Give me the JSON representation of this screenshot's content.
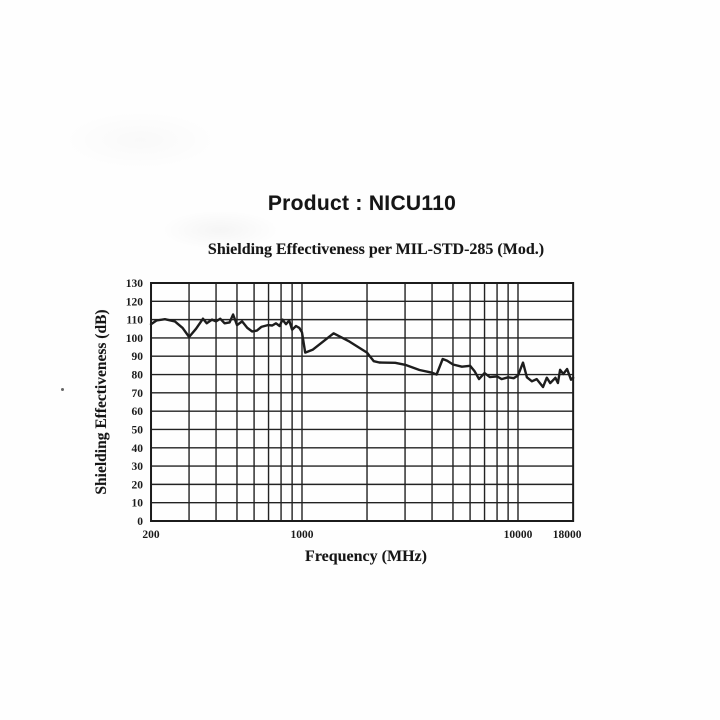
{
  "page": {
    "title": "Product : NICU110",
    "subtitle": "Shielding Effectiveness per MIL-STD-285 (Mod.)"
  },
  "chart_data": {
    "type": "line",
    "title": "Shielding Effectiveness per MIL-STD-285 (Mod.)",
    "xlabel": "Frequency (MHz)",
    "ylabel": "Shielding Effectiveness (dB)",
    "x_scale": "log",
    "xlim": [
      200,
      18000
    ],
    "ylim": [
      0,
      130
    ],
    "grid": true,
    "legend": "none",
    "line_color": "#1d1d1d",
    "y_ticks": [
      0,
      10,
      20,
      30,
      40,
      50,
      60,
      70,
      80,
      90,
      100,
      110,
      120,
      130
    ],
    "x_ticks": [
      {
        "label": "200",
        "value": 200
      },
      {
        "label": "1000",
        "value": 1000
      },
      {
        "label": "10000",
        "value": 10000
      },
      {
        "label": "18000",
        "value": 18000
      }
    ],
    "x_gridlines": [
      300,
      400,
      500,
      600,
      700,
      800,
      900,
      1000,
      2000,
      3000,
      4000,
      5000,
      6000,
      7000,
      8000,
      9000,
      10000
    ],
    "series": [
      {
        "name": "Shielding Effectiveness (dB) vs Frequency (MHz)",
        "points": [
          [
            200,
            107.5
          ],
          [
            212,
            109.5
          ],
          [
            232,
            110.2
          ],
          [
            258,
            109
          ],
          [
            280,
            105.5
          ],
          [
            300,
            100.5
          ],
          [
            323,
            105
          ],
          [
            348,
            110.5
          ],
          [
            362,
            108
          ],
          [
            383,
            110
          ],
          [
            400,
            109
          ],
          [
            418,
            110.5
          ],
          [
            438,
            108
          ],
          [
            462,
            108.5
          ],
          [
            480,
            112.8
          ],
          [
            500,
            107
          ],
          [
            528,
            109
          ],
          [
            558,
            105.5
          ],
          [
            588,
            103.5
          ],
          [
            618,
            104
          ],
          [
            648,
            106
          ],
          [
            695,
            107
          ],
          [
            728,
            106.8
          ],
          [
            758,
            108
          ],
          [
            788,
            106.5
          ],
          [
            812,
            110
          ],
          [
            843,
            107.5
          ],
          [
            872,
            109.5
          ],
          [
            900,
            104.5
          ],
          [
            938,
            106.5
          ],
          [
            972,
            105.5
          ],
          [
            1000,
            103
          ],
          [
            1035,
            92
          ],
          [
            1120,
            93.5
          ],
          [
            1400,
            102.5
          ],
          [
            1660,
            98
          ],
          [
            2000,
            92
          ],
          [
            2150,
            87.3
          ],
          [
            2280,
            86.6
          ],
          [
            2700,
            86.4
          ],
          [
            3000,
            85.3
          ],
          [
            3500,
            82.5
          ],
          [
            4000,
            81
          ],
          [
            4200,
            80
          ],
          [
            4480,
            88.5
          ],
          [
            4700,
            87.5
          ],
          [
            5000,
            85.5
          ],
          [
            5500,
            84.3
          ],
          [
            6000,
            84.8
          ],
          [
            6300,
            81.7
          ],
          [
            6600,
            77.5
          ],
          [
            7000,
            80.8
          ],
          [
            7400,
            78.6
          ],
          [
            8000,
            79
          ],
          [
            8400,
            77.5
          ],
          [
            9000,
            78.5
          ],
          [
            9550,
            78
          ],
          [
            10000,
            79.5
          ],
          [
            10550,
            86.5
          ],
          [
            11000,
            78.5
          ],
          [
            11600,
            76.3
          ],
          [
            12200,
            77.5
          ],
          [
            13050,
            73.2
          ],
          [
            13600,
            78.3
          ],
          [
            14100,
            75.3
          ],
          [
            14900,
            78.2
          ],
          [
            15300,
            75.4
          ],
          [
            15660,
            82.6
          ],
          [
            16200,
            80.3
          ],
          [
            16870,
            83
          ],
          [
            17600,
            77.2
          ],
          [
            18000,
            78.2
          ]
        ]
      }
    ]
  }
}
